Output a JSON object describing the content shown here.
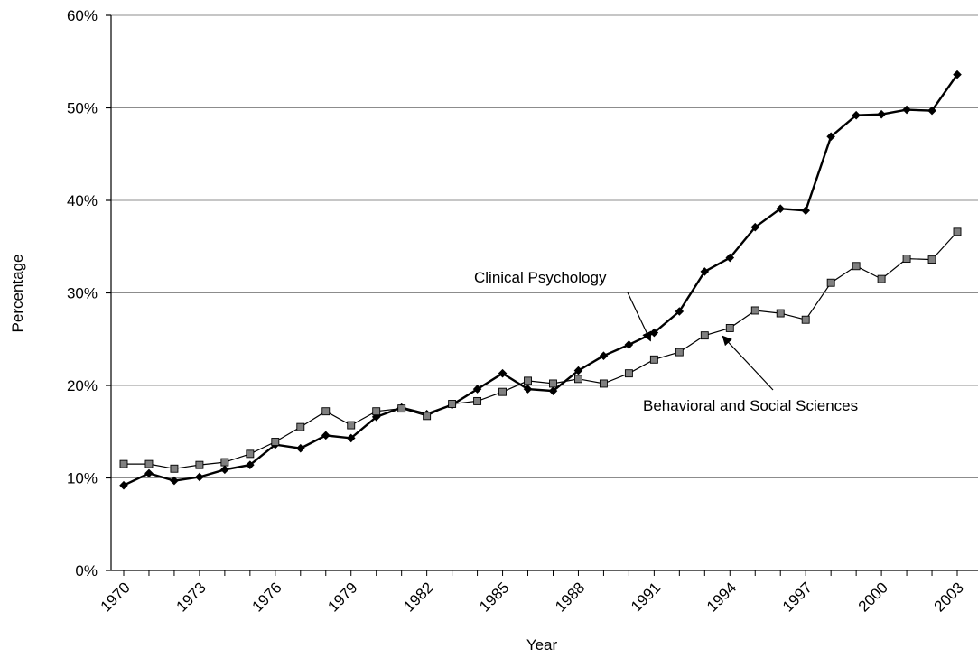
{
  "chart_data": {
    "type": "line",
    "title": "",
    "xlabel": "Year",
    "ylabel": "Percentage",
    "ylim": [
      0,
      60
    ],
    "xlim": [
      1970,
      2003
    ],
    "y_ticks": [
      "0%",
      "10%",
      "20%",
      "30%",
      "40%",
      "50%",
      "60%"
    ],
    "x_ticks": [
      "1970",
      "1973",
      "1976",
      "1979",
      "1982",
      "1985",
      "1988",
      "1991",
      "1994",
      "1997",
      "2000",
      "2003"
    ],
    "grid": "horizontal",
    "x": [
      1970,
      1971,
      1972,
      1973,
      1974,
      1975,
      1976,
      1977,
      1978,
      1979,
      1980,
      1981,
      1982,
      1983,
      1984,
      1985,
      1986,
      1987,
      1988,
      1989,
      1990,
      1991,
      1992,
      1993,
      1994,
      1995,
      1996,
      1997,
      1998,
      1999,
      2000,
      2001,
      2002,
      2003
    ],
    "series": [
      {
        "name": "Clinical Psychology",
        "marker": "diamond",
        "color": "#000000",
        "values": [
          9.2,
          10.5,
          9.7,
          10.1,
          10.9,
          11.4,
          13.6,
          13.2,
          14.6,
          14.3,
          16.6,
          17.6,
          16.9,
          17.9,
          19.6,
          21.3,
          19.6,
          19.4,
          21.6,
          23.2,
          24.4,
          25.7,
          28.0,
          32.3,
          33.8,
          37.1,
          39.1,
          38.9,
          46.9,
          49.2,
          49.3,
          49.8,
          49.7,
          53.6
        ]
      },
      {
        "name": "Behavioral and Social Sciences",
        "marker": "square",
        "color": "#808080",
        "values": [
          11.5,
          11.5,
          11.0,
          11.4,
          11.7,
          12.6,
          13.9,
          15.5,
          17.2,
          15.7,
          17.2,
          17.5,
          16.7,
          18.0,
          18.3,
          19.3,
          20.5,
          20.2,
          20.7,
          20.2,
          21.3,
          22.8,
          23.6,
          25.4,
          26.2,
          28.1,
          27.8,
          27.1,
          31.1,
          32.9,
          31.5,
          33.7,
          33.6,
          36.6
        ]
      }
    ],
    "annotations": [
      {
        "text": "Clinical Psychology",
        "points_to": "Clinical Psychology",
        "x": 1991,
        "y": 25.7
      },
      {
        "text": "Behavioral and Social Sciences",
        "points_to": "Behavioral and Social Sciences",
        "x": 1994,
        "y": 26.2
      }
    ]
  }
}
